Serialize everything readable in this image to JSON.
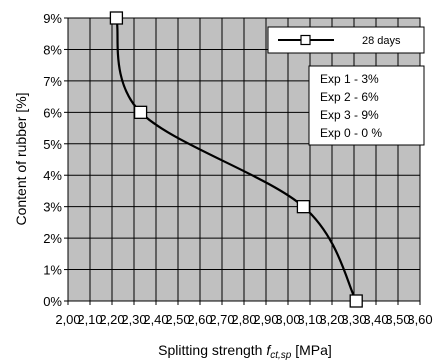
{
  "chart_data": {
    "type": "line",
    "xlabel_main": "Splitting strength ",
    "xlabel_symbol": "f",
    "xlabel_sub": "ct,sp",
    "xlabel_unit": " [MPa]",
    "ylabel": "Content of rubber [%]",
    "xlim": [
      2.0,
      3.6
    ],
    "ylim": [
      0,
      9
    ],
    "x_ticks": [
      2.0,
      2.1,
      2.2,
      2.3,
      2.4,
      2.5,
      2.6,
      2.7,
      2.8,
      2.9,
      3.0,
      3.1,
      3.2,
      3.3,
      3.4,
      3.5,
      3.6
    ],
    "x_tick_labels": [
      "2,00",
      "2,10",
      "2,20",
      "2,30",
      "2,40",
      "2,50",
      "2,60",
      "2,70",
      "2,80",
      "2,90",
      "3,00",
      "3,10",
      "3,20",
      "3,30",
      "3,40",
      "3,50",
      "3,60"
    ],
    "y_ticks": [
      0,
      1,
      2,
      3,
      4,
      5,
      6,
      7,
      8,
      9
    ],
    "y_tick_labels": [
      "0%",
      "1%",
      "2%",
      "3%",
      "4%",
      "5%",
      "6%",
      "7%",
      "8%",
      "9%"
    ],
    "grid": true,
    "plot_background": "#c0c0c0",
    "line_color": "#000000",
    "marker_fill": "#ffffff",
    "series": [
      {
        "name": "28 days",
        "points": [
          {
            "x": 3.31,
            "y": 0
          },
          {
            "x": 3.07,
            "y": 3
          },
          {
            "x": 2.33,
            "y": 6
          },
          {
            "x": 2.22,
            "y": 9
          }
        ]
      }
    ],
    "legend_position": "top-right",
    "annotation_lines": [
      "Exp 1 - 3%",
      "Exp 2 - 6%",
      "Exp 3 - 9%",
      "Exp 0 - 0 %"
    ]
  }
}
